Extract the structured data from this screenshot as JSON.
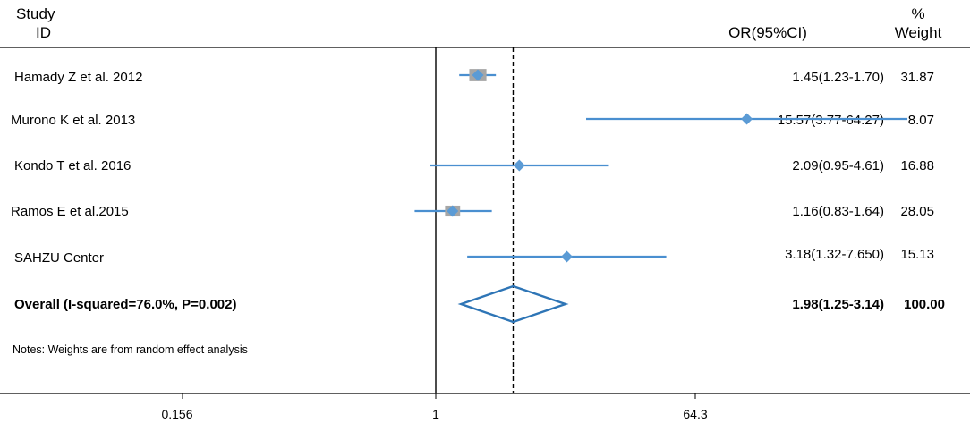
{
  "chart_data": {
    "type": "forest",
    "headers": {
      "study_line1": "Study",
      "study_line2": "ID",
      "or": "OR(95%CI)",
      "weight_line1": "%",
      "weight_line2": "Weight"
    },
    "studies": [
      {
        "label": "Hamady Z et al. 2012",
        "or": 1.45,
        "lower": 1.23,
        "upper": 1.7,
        "ci_text": "1.45(1.23-1.70)",
        "weight": 31.87,
        "weight_text": "31.87"
      },
      {
        "label": "Murono K et al. 2013",
        "or": 15.57,
        "lower": 3.77,
        "upper": 64.27,
        "ci_text": "15.57(3.77-64.27)",
        "weight": 8.07,
        "weight_text": "8.07"
      },
      {
        "label": "Kondo T et al. 2016",
        "or": 2.09,
        "lower": 0.95,
        "upper": 4.61,
        "ci_text": "2.09(0.95-4.61)",
        "weight": 16.88,
        "weight_text": "16.88"
      },
      {
        "label": "Ramos E et al.2015",
        "or": 1.16,
        "lower": 0.83,
        "upper": 1.64,
        "ci_text": "1.16(0.83-1.64)",
        "weight": 28.05,
        "weight_text": "28.05"
      },
      {
        "label": "SAHZU Center",
        "or": 3.18,
        "lower": 1.32,
        "upper": 7.65,
        "ci_text": "3.18(1.32-7.650)",
        "weight": 15.13,
        "weight_text": "15.13"
      }
    ],
    "overall": {
      "label": "Overall (I-squared=76.0%, P=0.002)",
      "or": 1.98,
      "lower": 1.25,
      "upper": 3.14,
      "ci_text": "1.98(1.25-3.14)",
      "weight_text": "100.00"
    },
    "note": "Notes: Weights are from random effect analysis",
    "x_axis": {
      "scale": "log",
      "ticks": [
        0.156,
        1,
        64.3
      ],
      "tick_labels": [
        "0.156",
        "1",
        "64.3"
      ]
    },
    "null_line": 1,
    "colors": {
      "marker": "#5b9bd5",
      "ci_line": "#4a8fd0",
      "weight_box": "#a6a6a6",
      "overall_diamond": "#2e75b6",
      "axis": "#000000"
    }
  }
}
